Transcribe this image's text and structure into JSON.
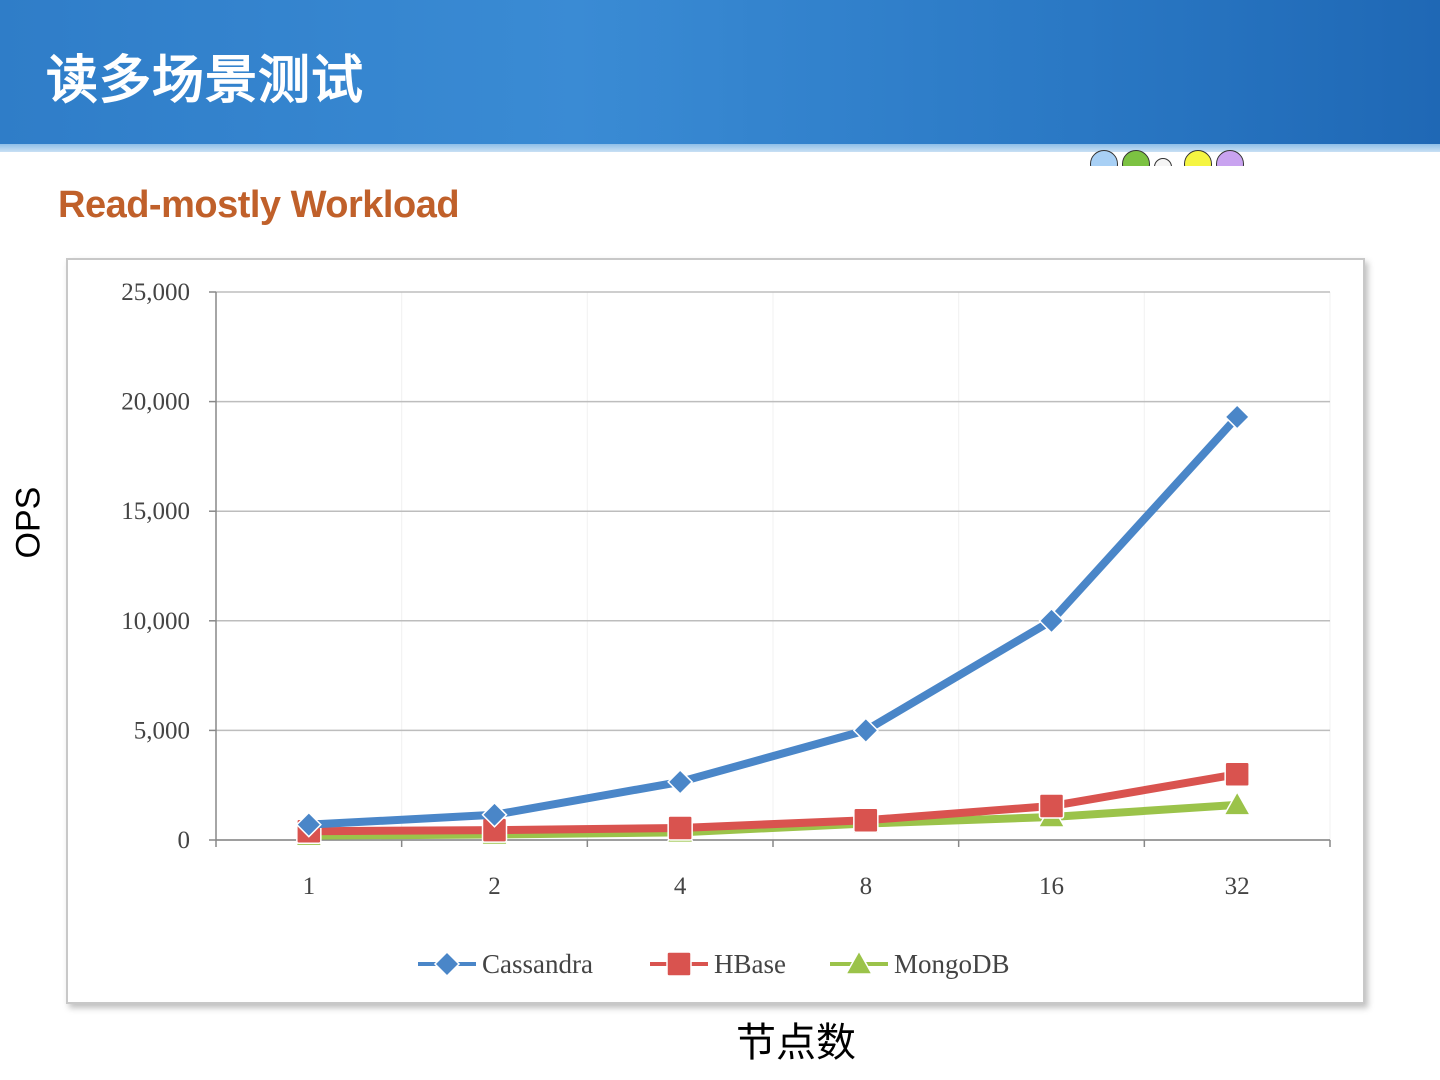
{
  "slide": {
    "title": "读多场景测试"
  },
  "chart_data": {
    "type": "line",
    "title": "Read-mostly Workload",
    "xlabel": "节点数",
    "ylabel": "OPS",
    "categories": [
      "1",
      "2",
      "4",
      "8",
      "16",
      "32"
    ],
    "ylim": [
      0,
      25000
    ],
    "y_ticks": [
      "0",
      "5,000",
      "10,000",
      "15,000",
      "20,000",
      "25,000"
    ],
    "y_tick_values": [
      0,
      5000,
      10000,
      15000,
      20000,
      25000
    ],
    "grid": true,
    "legend_position": "bottom",
    "series": [
      {
        "name": "Cassandra",
        "values": [
          700,
          1150,
          2650,
          5000,
          10000,
          19300
        ],
        "color": "#4a86c8",
        "marker": "diamond"
      },
      {
        "name": "HBase",
        "values": [
          400,
          450,
          550,
          900,
          1550,
          3000
        ],
        "color": "#d9534f",
        "marker": "square"
      },
      {
        "name": "MongoDB",
        "values": [
          200,
          250,
          350,
          750,
          1050,
          1600
        ],
        "color": "#9bc34a",
        "marker": "triangle"
      }
    ]
  },
  "decor": {
    "dot_colors": [
      "#a8d0f5",
      "#7cc242",
      "#f5f5f5",
      "#f5f542",
      "#c9a3f0"
    ]
  }
}
